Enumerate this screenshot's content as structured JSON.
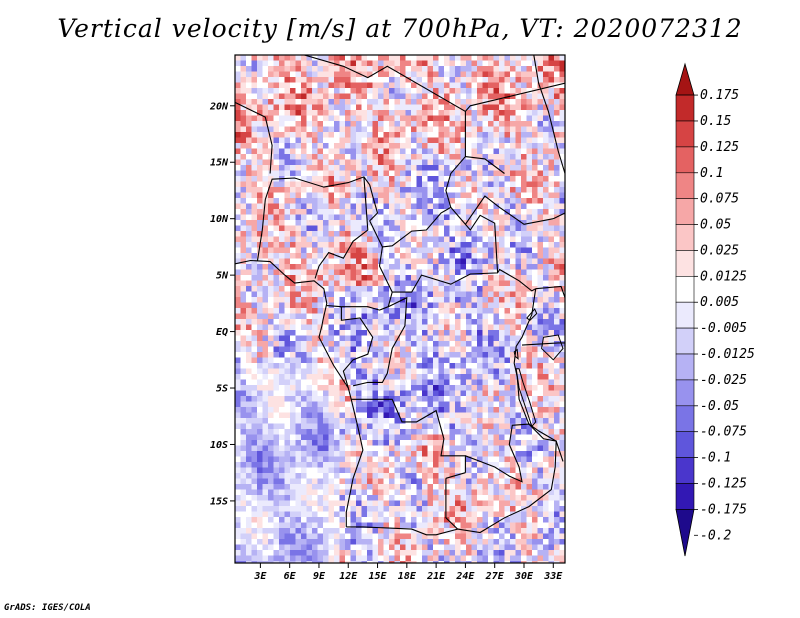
{
  "title": "Vertical velocity [m/s] at 700hPa, VT: 2020072312",
  "footer": "GrADS: IGES/COLA",
  "colors": {
    "neg": [
      "#1e0a8c",
      "#3218b4",
      "#4a36cc",
      "#5f56dc",
      "#7a74e6",
      "#9892ee",
      "#b6b2f4",
      "#d2d0f9",
      "#ebeafd"
    ],
    "pos": [
      "#ffffff",
      "#fde2e2",
      "#fbc6c6",
      "#f6a7a7",
      "#ef8585",
      "#e46262",
      "#d64444",
      "#c22a2a",
      "#a51414"
    ],
    "border": "#000000",
    "frame": "#000000"
  },
  "map": {
    "lat_labels": [
      "20N",
      "15N",
      "10N",
      "5N",
      "EQ",
      "5S",
      "10S",
      "15S"
    ],
    "lon_labels": [
      "3E",
      "6E",
      "9E",
      "12E",
      "15E",
      "18E",
      "21E",
      "24E",
      "27E",
      "30E",
      "33E"
    ]
  },
  "colorbar": {
    "labels": [
      "0.175",
      "0.15",
      "0.125",
      "0.1",
      "0.075",
      "0.05",
      "0.025",
      "0.0125",
      "0.005",
      "-0.005",
      "-0.0125",
      "-0.025",
      "-0.05",
      "-0.075",
      "-0.1",
      "-0.125",
      "-0.175",
      "-0.2"
    ]
  }
}
